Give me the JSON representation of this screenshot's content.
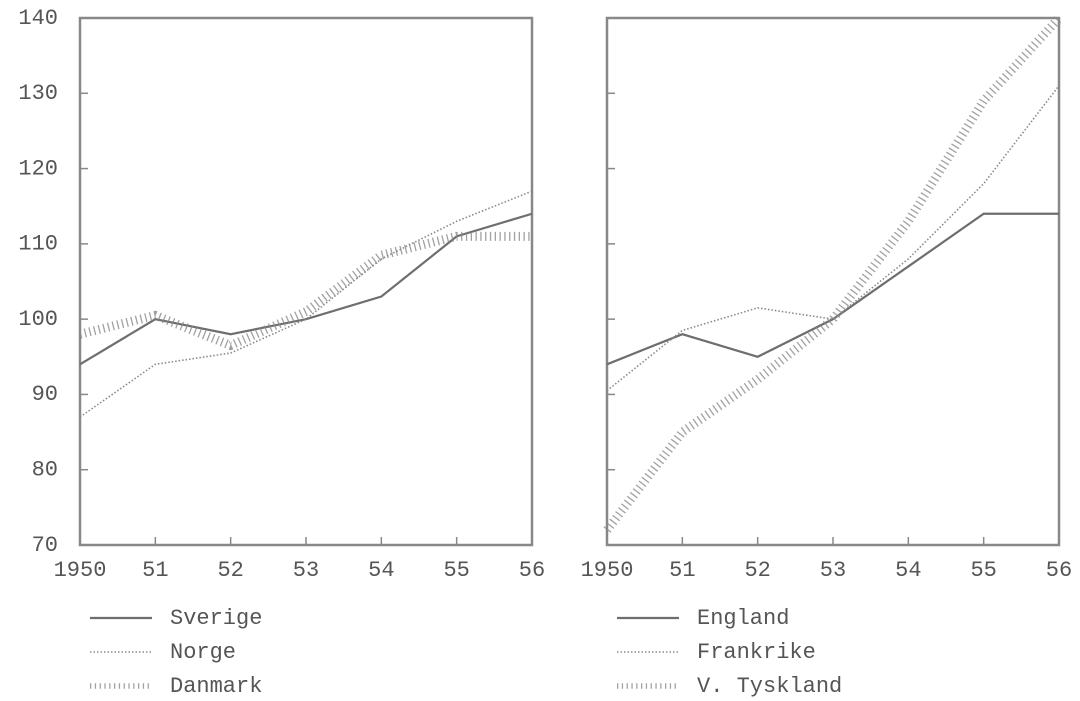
{
  "chart_data": [
    {
      "type": "line",
      "categories": [
        "1950",
        "51",
        "52",
        "53",
        "54",
        "55",
        "56"
      ],
      "ylim": [
        70,
        140
      ],
      "yticks": [
        70,
        80,
        90,
        100,
        110,
        120,
        130,
        140
      ],
      "ytick_labels": true,
      "series": [
        {
          "name": "Sverige",
          "color": "#6e6e6e",
          "style": "solid",
          "values": [
            94,
            100,
            98,
            100,
            103,
            111,
            114
          ]
        },
        {
          "name": "Norge",
          "color": "#8a8a8a",
          "style": "dotted",
          "values": [
            87,
            94,
            95.5,
            100,
            108,
            113,
            117
          ]
        },
        {
          "name": "Danmark",
          "color": "#8a8a8a",
          "style": "hatched",
          "values": [
            98,
            100.5,
            96.5,
            101,
            108.5,
            111,
            111
          ]
        }
      ]
    },
    {
      "type": "line",
      "categories": [
        "1950",
        "51",
        "52",
        "53",
        "54",
        "55",
        "56"
      ],
      "ylim": [
        70,
        140
      ],
      "yticks": [
        70,
        80,
        90,
        100,
        110,
        120,
        130,
        140
      ],
      "ytick_labels": false,
      "series": [
        {
          "name": "England",
          "color": "#6e6e6e",
          "style": "solid",
          "values": [
            94,
            98,
            95,
            100,
            107,
            114,
            114
          ]
        },
        {
          "name": "Frankrike",
          "color": "#8a8a8a",
          "style": "dotted",
          "values": [
            90.5,
            98.5,
            101.5,
            100,
            108,
            118,
            131
          ]
        },
        {
          "name": "V. Tyskland",
          "color": "#8a8a8a",
          "style": "hatched",
          "values": [
            72,
            85,
            92,
            100,
            113,
            129,
            140
          ]
        }
      ]
    }
  ]
}
